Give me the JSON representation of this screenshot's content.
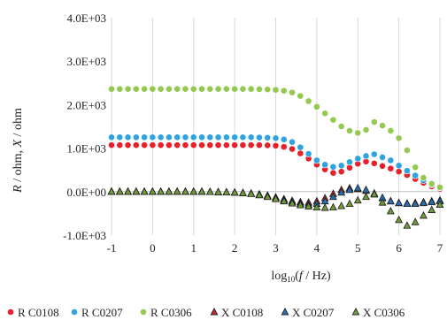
{
  "chart_data": {
    "type": "scatter",
    "x_label_prefix": "log",
    "x_label_sub": "10",
    "x_label_rest": "(",
    "x_label_f": "f",
    "x_label_tail": " / Hz)",
    "y_label_R": "R",
    "y_label_mid": " / ohm, ",
    "y_label_X": "X",
    "y_label_tail": " / ohm",
    "xlim": [
      -1,
      7
    ],
    "ylim": [
      -1000,
      4000
    ],
    "x_ticks": [
      -1,
      0,
      1,
      2,
      3,
      4,
      5,
      6,
      7
    ],
    "x_tick_labels": [
      "-1",
      "0",
      "1",
      "2",
      "3",
      "4",
      "5",
      "6",
      "7"
    ],
    "y_ticks": [
      -1000,
      0,
      1000,
      2000,
      3000,
      4000
    ],
    "y_tick_labels": [
      "-1.0E+03",
      "0.0E+00",
      "1.0E+03",
      "2.0E+03",
      "3.0E+03",
      "4.0E+03"
    ],
    "grid": "vertical",
    "legend_position": "bottom",
    "x": [
      -1.0,
      -0.8,
      -0.6,
      -0.4,
      -0.2,
      0.0,
      0.2,
      0.4,
      0.6,
      0.8,
      1.0,
      1.2,
      1.4,
      1.6,
      1.8,
      2.0,
      2.2,
      2.4,
      2.6,
      2.8,
      3.0,
      3.2,
      3.4,
      3.6,
      3.8,
      4.0,
      4.2,
      4.4,
      4.6,
      4.8,
      5.0,
      5.2,
      5.4,
      5.6,
      5.8,
      6.0,
      6.2,
      6.4,
      6.6,
      6.8,
      7.0
    ],
    "series": [
      {
        "name": "R C0108",
        "marker": "circle",
        "color": "#e8202a",
        "values": [
          1070,
          1070,
          1070,
          1070,
          1070,
          1070,
          1070,
          1070,
          1070,
          1070,
          1070,
          1070,
          1070,
          1070,
          1070,
          1070,
          1070,
          1070,
          1070,
          1065,
          1055,
          1030,
          980,
          880,
          760,
          620,
          510,
          430,
          460,
          550,
          640,
          690,
          650,
          590,
          530,
          460,
          380,
          290,
          200,
          120,
          60
        ]
      },
      {
        "name": "R C0207",
        "marker": "circle",
        "color": "#2ea3e0",
        "values": [
          1250,
          1250,
          1250,
          1250,
          1250,
          1250,
          1250,
          1250,
          1250,
          1250,
          1250,
          1250,
          1250,
          1250,
          1250,
          1250,
          1250,
          1250,
          1245,
          1240,
          1230,
          1200,
          1140,
          1020,
          870,
          720,
          620,
          570,
          600,
          680,
          760,
          820,
          860,
          790,
          720,
          600,
          480,
          370,
          260,
          160,
          90
        ]
      },
      {
        "name": "R C0306",
        "marker": "circle",
        "color": "#92c94e",
        "values": [
          2360,
          2360,
          2360,
          2360,
          2360,
          2360,
          2360,
          2360,
          2360,
          2360,
          2360,
          2360,
          2360,
          2360,
          2360,
          2360,
          2360,
          2360,
          2355,
          2350,
          2340,
          2320,
          2280,
          2200,
          2080,
          1950,
          1800,
          1650,
          1500,
          1400,
          1350,
          1420,
          1600,
          1520,
          1400,
          1230,
          950,
          560,
          320,
          180,
          100
        ]
      },
      {
        "name": "X C0108",
        "marker": "triangle",
        "color": "#c0282a",
        "values": [
          0,
          0,
          0,
          0,
          0,
          0,
          0,
          0,
          0,
          0,
          0,
          0,
          -5,
          -10,
          -15,
          -20,
          -30,
          -40,
          -60,
          -90,
          -130,
          -170,
          -210,
          -240,
          -250,
          -220,
          -150,
          -50,
          40,
          80,
          60,
          20,
          -60,
          -150,
          -220,
          -260,
          -270,
          -260,
          -240,
          -220,
          -200
        ]
      },
      {
        "name": "X C0207",
        "marker": "triangle",
        "color": "#2a6fb0",
        "values": [
          0,
          0,
          0,
          0,
          0,
          0,
          0,
          0,
          0,
          0,
          0,
          0,
          -5,
          -10,
          -15,
          -20,
          -30,
          -45,
          -70,
          -100,
          -140,
          -190,
          -240,
          -280,
          -300,
          -280,
          -220,
          -120,
          -20,
          40,
          80,
          40,
          -40,
          -140,
          -220,
          -260,
          -280,
          -280,
          -260,
          -240,
          -220
        ]
      },
      {
        "name": "X C0306",
        "marker": "triangle",
        "color": "#6f9a3c",
        "values": [
          0,
          0,
          0,
          0,
          0,
          0,
          0,
          0,
          0,
          0,
          0,
          0,
          -5,
          -10,
          -15,
          -20,
          -30,
          -50,
          -80,
          -120,
          -170,
          -220,
          -270,
          -310,
          -340,
          -360,
          -370,
          -360,
          -330,
          -280,
          -200,
          -120,
          -60,
          -250,
          -450,
          -650,
          -780,
          -700,
          -550,
          -420,
          -300
        ]
      }
    ]
  }
}
